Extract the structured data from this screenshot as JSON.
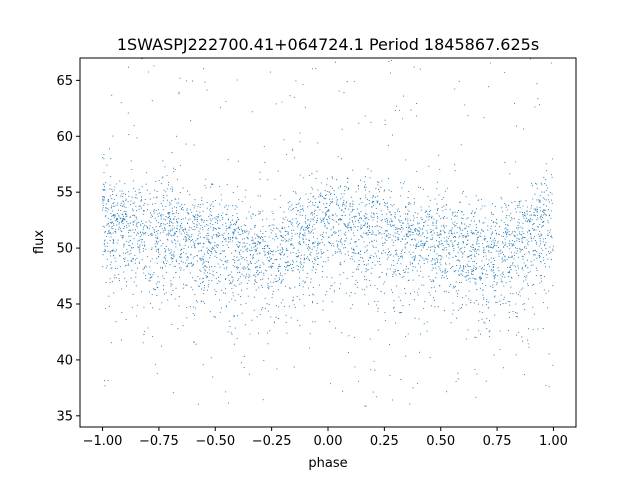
{
  "chart_data": {
    "type": "scatter",
    "title": "1SWASPJ222700.41+064724.1 Period 1845867.625s",
    "xlabel": "phase",
    "ylabel": "flux",
    "xlim": [
      -1.1,
      1.1
    ],
    "ylim": [
      34,
      67
    ],
    "xticks": [
      -1.0,
      -0.75,
      -0.5,
      -0.25,
      0.0,
      0.25,
      0.5,
      0.75,
      1.0
    ],
    "xtick_labels": [
      "−1.00",
      "−0.75",
      "−0.50",
      "−0.25",
      "0.00",
      "0.25",
      "0.50",
      "0.75",
      "1.00"
    ],
    "yticks": [
      35,
      40,
      45,
      50,
      55,
      60,
      65
    ],
    "ytick_labels": [
      "35",
      "40",
      "45",
      "50",
      "55",
      "60",
      "65"
    ],
    "grid": false,
    "marker_color": "#1f77b4",
    "series_summary": {
      "x_range": [
        -1.0,
        1.0
      ],
      "phase_profile": [
        {
          "phase": -1.0,
          "median_flux": 53.0
        },
        {
          "phase": -0.75,
          "median_flux": 52.0
        },
        {
          "phase": -0.5,
          "median_flux": 51.0
        },
        {
          "phase": -0.25,
          "median_flux": 50.0
        },
        {
          "phase": 0.0,
          "median_flux": 53.0
        },
        {
          "phase": 0.25,
          "median_flux": 52.0
        },
        {
          "phase": 0.5,
          "median_flux": 51.0
        },
        {
          "phase": 0.75,
          "median_flux": 50.0
        },
        {
          "phase": 1.0,
          "median_flux": 53.0
        }
      ],
      "core_band": [
        45,
        57
      ],
      "outlier_range": [
        35.5,
        67
      ]
    }
  }
}
